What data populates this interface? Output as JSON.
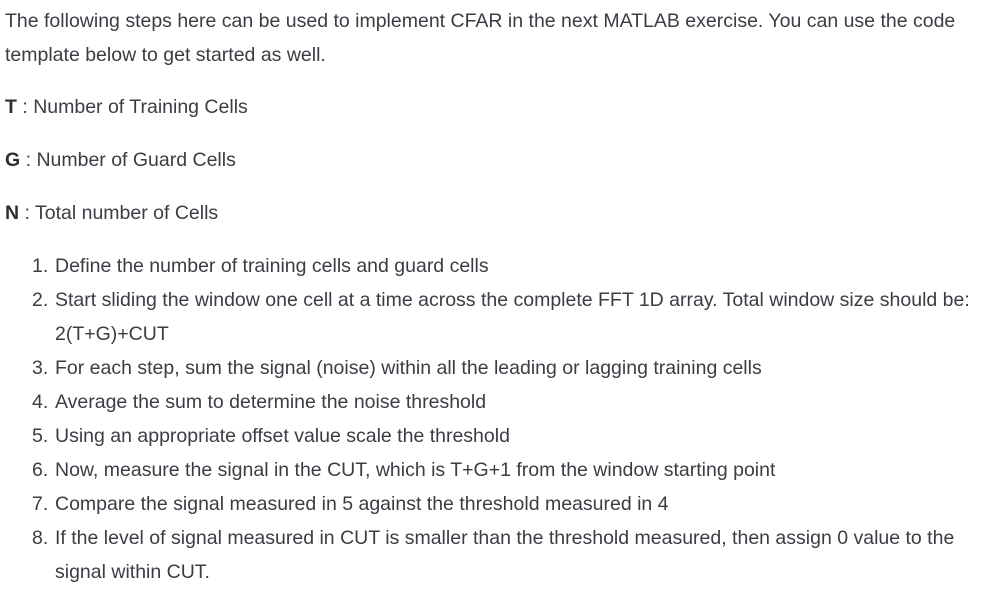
{
  "intro": "The following steps here can be used to implement CFAR in the next MATLAB exercise. You can use the code template below to get started as well.",
  "definitions": [
    {
      "term": "T",
      "separator": " : ",
      "description": "Number of Training Cells"
    },
    {
      "term": "G",
      "separator": " : ",
      "description": "Number of Guard Cells"
    },
    {
      "term": "N",
      "separator": " : ",
      "description": "Total number of Cells"
    }
  ],
  "steps": [
    {
      "number": "1.",
      "text": "Define the number of training cells and guard cells"
    },
    {
      "number": "2.",
      "text": "Start sliding the window one cell at a time across the complete FFT 1D array. Total window size should be: 2(T+G)+CUT"
    },
    {
      "number": "3.",
      "text": "For each step, sum the signal (noise) within all the leading or lagging training cells"
    },
    {
      "number": "4.",
      "text": "Average the sum to determine the noise threshold"
    },
    {
      "number": "5.",
      "text": "Using an appropriate offset value scale the threshold"
    },
    {
      "number": "6.",
      "text": "Now, measure the signal in the CUT, which is T+G+1 from the window starting point"
    },
    {
      "number": "7.",
      "text": "Compare the signal measured in 5 against the threshold measured in 4"
    },
    {
      "number": "8.",
      "text": "If the level of signal measured in CUT is smaller than the threshold measured, then assign 0 value to the signal within CUT."
    }
  ]
}
